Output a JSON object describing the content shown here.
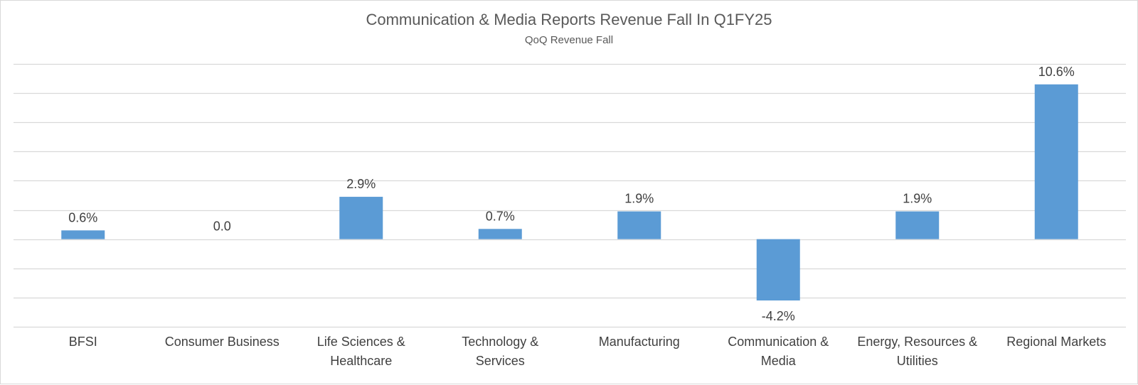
{
  "chart_data": {
    "type": "bar",
    "title": "Communication & Media Reports Revenue Fall In Q1FY25",
    "subtitle": "QoQ Revenue Fall",
    "categories": [
      "BFSI",
      "Consumer Business",
      "Life Sciences & Healthcare",
      "Technology & Services",
      "Manufacturing",
      "Communication & Media",
      "Energy, Resources & Utilities",
      "Regional Markets"
    ],
    "category_lines": [
      [
        "BFSI"
      ],
      [
        "Consumer Business"
      ],
      [
        "Life Sciences &",
        "Healthcare"
      ],
      [
        "Technology &",
        "Services"
      ],
      [
        "Manufacturing"
      ],
      [
        "Communication &",
        "Media"
      ],
      [
        "Energy, Resources &",
        "Utilities"
      ],
      [
        "Regional Markets"
      ]
    ],
    "values": [
      0.6,
      0.0,
      2.9,
      0.7,
      1.9,
      -4.2,
      1.9,
      10.6
    ],
    "data_labels": [
      "0.6%",
      "0.0",
      "2.9%",
      "0.7%",
      "1.9%",
      "-4.2%",
      "1.9%",
      "10.6%"
    ],
    "ylim": [
      -6,
      12
    ],
    "y_gridline_step": 2,
    "grid": true,
    "y_axis_labels_shown": false,
    "bar_color": "#5b9bd5",
    "gridline_color": "#d9d9d9",
    "text_color": "#404040"
  }
}
